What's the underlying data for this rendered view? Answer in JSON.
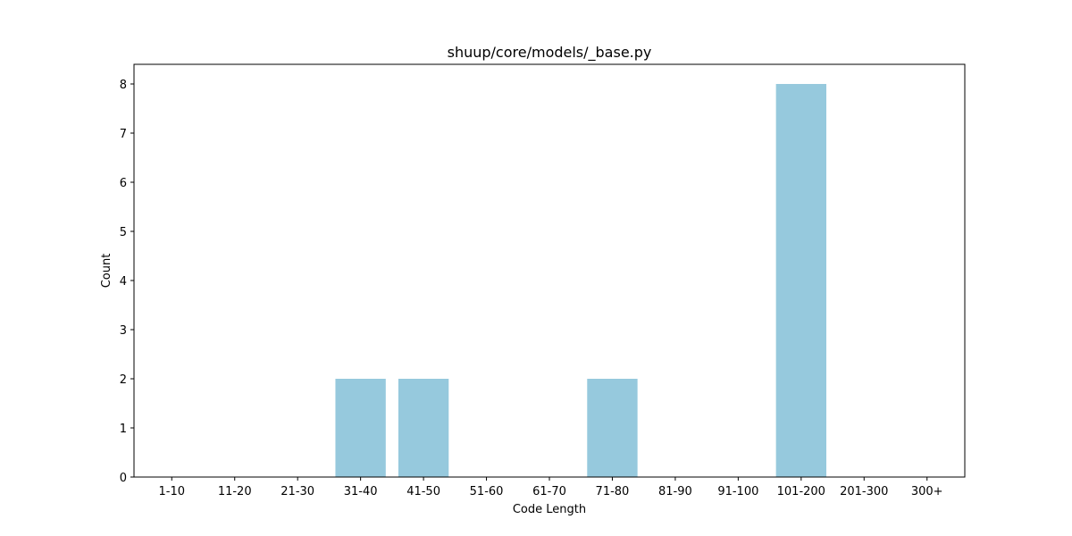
{
  "chart_data": {
    "type": "bar",
    "title": "shuup/core/models/_base.py",
    "xlabel": "Code Length",
    "ylabel": "Count",
    "categories": [
      "1-10",
      "11-20",
      "21-30",
      "31-40",
      "41-50",
      "51-60",
      "61-70",
      "71-80",
      "81-90",
      "91-100",
      "101-200",
      "201-300",
      "300+"
    ],
    "values": [
      0,
      0,
      0,
      2,
      2,
      0,
      0,
      2,
      0,
      0,
      8,
      0,
      0
    ],
    "ylim": [
      0,
      8.4
    ],
    "yticks": [
      0,
      1,
      2,
      3,
      4,
      5,
      6,
      7,
      8
    ],
    "bar_color": "#96c9dd",
    "grid": false,
    "legend": "none"
  }
}
